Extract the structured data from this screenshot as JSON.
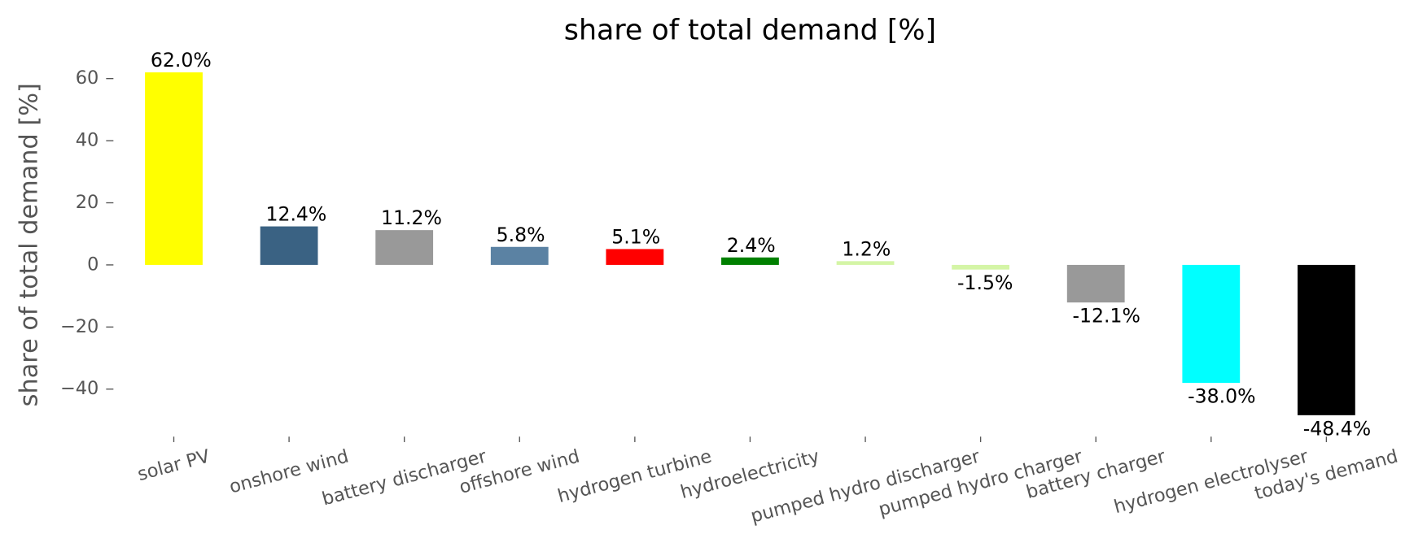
{
  "chart_data": {
    "type": "bar",
    "title": "share of total demand [%]",
    "ylabel": "share of total demand [%]",
    "categories": [
      "solar PV",
      "onshore wind",
      "battery discharger",
      "offshore wind",
      "hydrogen turbine",
      "hydroelectricity",
      "pumped hydro discharger",
      "pumped hydro charger",
      "battery charger",
      "hydrogen electrolyser",
      "today's demand"
    ],
    "values": [
      62.0,
      12.4,
      11.2,
      5.8,
      5.1,
      2.4,
      1.2,
      -1.5,
      -12.1,
      -38.0,
      -48.4
    ],
    "value_labels": [
      "62.0%",
      "12.4%",
      "11.2%",
      "5.8%",
      "5.1%",
      "2.4%",
      "1.2%",
      "-1.5%",
      "-12.1%",
      "-38.0%",
      "-48.4%"
    ],
    "colors": [
      "#ffff00",
      "#3a6283",
      "#999999",
      "#5b82a3",
      "#ff0000",
      "#008000",
      "#d4f5a6",
      "#d4f5a6",
      "#999999",
      "#00ffff",
      "#000000"
    ],
    "ylim": [
      -53.92,
      67.52
    ],
    "yticks": [
      {
        "value": -40,
        "label": "−40"
      },
      {
        "value": -20,
        "label": "−20"
      },
      0,
      20,
      40,
      60
    ],
    "grid": false
  }
}
